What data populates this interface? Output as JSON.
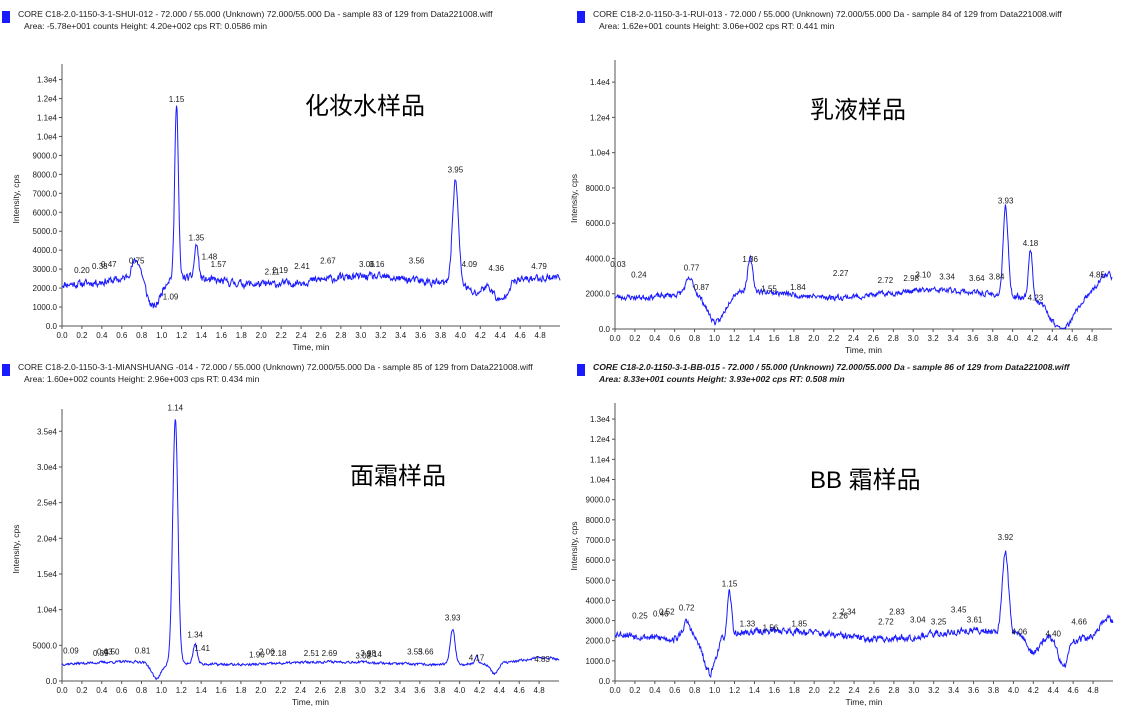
{
  "chart_data": [
    {
      "type": "line",
      "header_line1": "CORE C18-2.0-1150-3-1-SHUI-012 - 72.000 / 55.000 (Unknown) 72.000/55.000 Da - sample 83 of 129 from Data221008.wiff",
      "header_line2": "Area: -5.78e+001 counts  Height: 4.20e+002 cps  RT: 0.0586 min",
      "header_italic": false,
      "sample_label": "化妆水样品",
      "xlabel": "Time, min",
      "ylabel": "Intensity, cps",
      "xlim": [
        0,
        5.0
      ],
      "ylim": [
        0,
        13400
      ],
      "xticks": [
        0.0,
        0.2,
        0.4,
        0.6,
        0.8,
        1.0,
        1.2,
        1.4,
        1.6,
        1.8,
        2.0,
        2.2,
        2.4,
        2.6,
        2.8,
        3.0,
        3.2,
        3.4,
        3.6,
        3.8,
        4.0,
        4.2,
        4.4,
        4.6,
        4.8
      ],
      "xtick_labels": [
        "0.0",
        "0.2",
        "0.4",
        "0.6",
        "0.8",
        "1.0",
        "1.2",
        "1.4",
        "1.6",
        "1.8",
        "2.0",
        "2.2",
        "2.4",
        "2.6",
        "2.8",
        "3.0",
        "3.2",
        "3.4",
        "3.6",
        "3.8",
        "4.0",
        "4.2",
        "4.4",
        "4.6",
        "4.8"
      ],
      "yticks": [
        0,
        1000,
        2000,
        3000,
        4000,
        5000,
        6000,
        7000,
        8000,
        9000,
        10000,
        11000,
        12000,
        13000
      ],
      "ytick_labels": [
        "0.0",
        "1000.0",
        "2000.0",
        "3000.0",
        "4000.0",
        "5000.0",
        "6000.0",
        "7000.0",
        "8000.0",
        "9000.0",
        "1.0e4",
        "1.1e4",
        "1.2e4",
        "1.3e4"
      ],
      "peak_labels": [
        {
          "x": 0.2,
          "y": 2700,
          "label": "0.20"
        },
        {
          "x": 0.38,
          "y": 2900,
          "label": "0.38"
        },
        {
          "x": 0.47,
          "y": 3000,
          "label": "0.47"
        },
        {
          "x": 0.75,
          "y": 3200,
          "label": "0.75"
        },
        {
          "x": 1.09,
          "y": 1300,
          "label": "1.09"
        },
        {
          "x": 1.15,
          "y": 11700,
          "label": "1.15"
        },
        {
          "x": 1.35,
          "y": 4400,
          "label": "1.35"
        },
        {
          "x": 1.48,
          "y": 3400,
          "label": "1.48"
        },
        {
          "x": 1.57,
          "y": 3000,
          "label": "1.57"
        },
        {
          "x": 2.11,
          "y": 2600,
          "label": "2.11"
        },
        {
          "x": 2.19,
          "y": 2700,
          "label": "2.19"
        },
        {
          "x": 2.41,
          "y": 2900,
          "label": "2.41"
        },
        {
          "x": 2.67,
          "y": 3200,
          "label": "2.67"
        },
        {
          "x": 3.06,
          "y": 3000,
          "label": "3.06"
        },
        {
          "x": 3.16,
          "y": 3000,
          "label": "3.16"
        },
        {
          "x": 3.56,
          "y": 3200,
          "label": "3.56"
        },
        {
          "x": 3.95,
          "y": 8000,
          "label": "3.95"
        },
        {
          "x": 4.09,
          "y": 3000,
          "label": "4.09"
        },
        {
          "x": 4.36,
          "y": 2800,
          "label": "4.36"
        },
        {
          "x": 4.79,
          "y": 2900,
          "label": "4.79"
        }
      ],
      "features": [
        {
          "x": 0.75,
          "h": 1000,
          "w": 0.05
        },
        {
          "x": 0.92,
          "h": -1600,
          "w": 0.07
        },
        {
          "x": 1.15,
          "h": 9300,
          "w": 0.018
        },
        {
          "x": 1.35,
          "h": 1800,
          "w": 0.02
        },
        {
          "x": 3.95,
          "h": 5500,
          "w": 0.03
        },
        {
          "x": 4.4,
          "h": -1000,
          "w": 0.06
        },
        {
          "x": 4.15,
          "h": -500,
          "w": 0.06
        }
      ],
      "baseline": 2400,
      "noise": 320,
      "seed": 11
    },
    {
      "type": "line",
      "header_line1": "CORE C18-2.0-1150-3-1-RUI-013 - 72.000 / 55.000 (Unknown) 72.000/55.000 Da - sample 84 of 129 from Data221008.wiff",
      "header_line2": "Area: 1.62e+001 counts  Height: 3.06e+002 cps  RT: 0.441 min",
      "header_italic": false,
      "sample_label": "乳液样品",
      "xlabel": "Time, min",
      "ylabel": "Intensity, cps",
      "xlim": [
        0,
        5.0
      ],
      "ylim": [
        0,
        14800
      ],
      "xticks": [
        0.0,
        0.2,
        0.4,
        0.6,
        0.8,
        1.0,
        1.2,
        1.4,
        1.6,
        1.8,
        2.0,
        2.2,
        2.4,
        2.6,
        2.8,
        3.0,
        3.2,
        3.4,
        3.6,
        3.8,
        4.0,
        4.2,
        4.4,
        4.6,
        4.8
      ],
      "xtick_labels": [
        "0.0",
        "0.2",
        "0.4",
        "0.6",
        "0.8",
        "1.0",
        "1.2",
        "1.4",
        "1.6",
        "1.8",
        "2.0",
        "2.2",
        "2.4",
        "2.6",
        "2.8",
        "3.0",
        "3.2",
        "3.4",
        "3.6",
        "3.8",
        "4.0",
        "4.2",
        "4.4",
        "4.6",
        "4.8"
      ],
      "yticks": [
        0,
        2000,
        4000,
        6000,
        8000,
        10000,
        12000,
        14000
      ],
      "ytick_labels": [
        "0.0",
        "2000.0",
        "4000.0",
        "6000.0",
        "8000.0",
        "1.0e4",
        "1.2e4",
        "1.4e4"
      ],
      "peak_labels": [
        {
          "x": 0.03,
          "y": 3400,
          "label": "0.03"
        },
        {
          "x": 0.24,
          "y": 2800,
          "label": "0.24"
        },
        {
          "x": 0.77,
          "y": 3200,
          "label": "0.77"
        },
        {
          "x": 0.87,
          "y": 2100,
          "label": "0.87"
        },
        {
          "x": 1.36,
          "y": 3700,
          "label": "1.36"
        },
        {
          "x": 1.55,
          "y": 2000,
          "label": "1.55"
        },
        {
          "x": 1.84,
          "y": 2100,
          "label": "1.84"
        },
        {
          "x": 2.27,
          "y": 2900,
          "label": "2.27"
        },
        {
          "x": 2.72,
          "y": 2500,
          "label": "2.72"
        },
        {
          "x": 2.98,
          "y": 2600,
          "label": "2.98"
        },
        {
          "x": 3.1,
          "y": 2800,
          "label": "3.10"
        },
        {
          "x": 3.34,
          "y": 2700,
          "label": "3.34"
        },
        {
          "x": 3.64,
          "y": 2600,
          "label": "3.64"
        },
        {
          "x": 3.84,
          "y": 2700,
          "label": "3.84"
        },
        {
          "x": 3.93,
          "y": 7000,
          "label": "3.93"
        },
        {
          "x": 4.18,
          "y": 4600,
          "label": "4.18"
        },
        {
          "x": 4.23,
          "y": 1500,
          "label": "4.23"
        },
        {
          "x": 4.85,
          "y": 2800,
          "label": "4.85"
        }
      ],
      "features": [
        {
          "x": 0.75,
          "h": 800,
          "w": 0.04
        },
        {
          "x": 1.02,
          "h": -1800,
          "w": 0.09
        },
        {
          "x": 1.36,
          "h": 1800,
          "w": 0.025
        },
        {
          "x": 3.93,
          "h": 5000,
          "w": 0.025
        },
        {
          "x": 4.18,
          "h": 2800,
          "w": 0.02
        },
        {
          "x": 4.5,
          "h": -1900,
          "w": 0.12
        },
        {
          "x": 4.95,
          "h": 1000,
          "w": 0.08
        }
      ],
      "baseline": 2000,
      "noise": 250,
      "seed": 23
    },
    {
      "type": "line",
      "header_line1": "CORE C18-2.0-1150-3-1-MIANSHUANG -014 - 72.000 / 55.000 (Unknown) 72.000/55.000 Da - sample 85 of 129 from Data221008.wiff",
      "header_line2": "Area: 1.60e+002 counts  Height: 2.96e+003 cps  RT: 0.434 min",
      "header_italic": false,
      "sample_label": "面霜样品",
      "xlabel": "Time, min",
      "ylabel": "Intensity, cps",
      "xlim": [
        0,
        5.0
      ],
      "ylim": [
        0,
        37000
      ],
      "xticks": [
        0.0,
        0.2,
        0.4,
        0.6,
        0.8,
        1.0,
        1.2,
        1.4,
        1.6,
        1.8,
        2.0,
        2.2,
        2.4,
        2.6,
        2.8,
        3.0,
        3.2,
        3.4,
        3.6,
        3.8,
        4.0,
        4.2,
        4.4,
        4.6,
        4.8
      ],
      "xtick_labels": [
        "0.0",
        "0.2",
        "0.4",
        "0.6",
        "0.8",
        "1.0",
        "1.2",
        "1.4",
        "1.6",
        "1.8",
        "2.0",
        "2.2",
        "2.4",
        "2.6",
        "2.8",
        "3.0",
        "3.2",
        "3.4",
        "3.6",
        "3.8",
        "4.0",
        "4.2",
        "4.4",
        "4.6",
        "4.8"
      ],
      "yticks": [
        0,
        5000,
        10000,
        15000,
        20000,
        25000,
        30000,
        35000
      ],
      "ytick_labels": [
        "0.0",
        "5000.0",
        "1.0e4",
        "1.5e4",
        "2.0e4",
        "2.5e4",
        "3.0e4",
        "3.5e4"
      ],
      "peak_labels": [
        {
          "x": 0.09,
          "y": 3600,
          "label": "0.09"
        },
        {
          "x": 0.39,
          "y": 3200,
          "label": "0.39"
        },
        {
          "x": 0.43,
          "y": 3400,
          "label": "0.43"
        },
        {
          "x": 0.5,
          "y": 3400,
          "label": "0.50"
        },
        {
          "x": 0.81,
          "y": 3600,
          "label": "0.81"
        },
        {
          "x": 1.14,
          "y": 37600,
          "label": "1.14"
        },
        {
          "x": 1.34,
          "y": 5800,
          "label": "1.34"
        },
        {
          "x": 1.41,
          "y": 3900,
          "label": "1.41"
        },
        {
          "x": 1.96,
          "y": 3000,
          "label": "1.96"
        },
        {
          "x": 2.06,
          "y": 3400,
          "label": "2.06"
        },
        {
          "x": 2.18,
          "y": 3200,
          "label": "2.18"
        },
        {
          "x": 2.51,
          "y": 3200,
          "label": "2.51"
        },
        {
          "x": 2.69,
          "y": 3200,
          "label": "2.69"
        },
        {
          "x": 3.03,
          "y": 2900,
          "label": "3.03"
        },
        {
          "x": 3.08,
          "y": 3200,
          "label": "3.08"
        },
        {
          "x": 3.14,
          "y": 3100,
          "label": "3.14"
        },
        {
          "x": 3.55,
          "y": 3400,
          "label": "3.55"
        },
        {
          "x": 3.66,
          "y": 3400,
          "label": "3.66"
        },
        {
          "x": 3.93,
          "y": 8200,
          "label": "3.93"
        },
        {
          "x": 4.17,
          "y": 2600,
          "label": "4.17"
        },
        {
          "x": 4.83,
          "y": 2400,
          "label": "4.83"
        }
      ],
      "features": [
        {
          "x": 0.95,
          "h": -2300,
          "w": 0.05
        },
        {
          "x": 1.14,
          "h": 34200,
          "w": 0.026
        },
        {
          "x": 1.34,
          "h": 2800,
          "w": 0.02
        },
        {
          "x": 3.93,
          "h": 4800,
          "w": 0.025
        },
        {
          "x": 4.17,
          "h": 1100,
          "w": 0.015
        },
        {
          "x": 4.35,
          "h": -1500,
          "w": 0.04
        },
        {
          "x": 4.85,
          "h": 600,
          "w": 0.15
        }
      ],
      "baseline": 2500,
      "noise": 280,
      "seed": 37
    },
    {
      "type": "line",
      "header_line1": "CORE C18-2.0-1150-3-1-BB-015 - 72.000 / 55.000 (Unknown) 72.000/55.000 Da - sample 86 of 129 from Data221008.wiff",
      "header_line2": "Area: 8.33e+001 counts  Height: 3.93e+002 cps  RT: 0.508 min",
      "header_italic": true,
      "sample_label": "BB 霜样品",
      "xlabel": "Time, min",
      "ylabel": "Intensity, cps",
      "xlim": [
        0,
        5.0
      ],
      "ylim": [
        0,
        13400
      ],
      "xticks": [
        0.0,
        0.2,
        0.4,
        0.6,
        0.8,
        1.0,
        1.2,
        1.4,
        1.6,
        1.8,
        2.0,
        2.2,
        2.4,
        2.6,
        2.8,
        3.0,
        3.2,
        3.4,
        3.6,
        3.8,
        4.0,
        4.2,
        4.4,
        4.6,
        4.8
      ],
      "xtick_labels": [
        "0.0",
        "0.2",
        "0.4",
        "0.6",
        "0.8",
        "1.0",
        "1.2",
        "1.4",
        "1.6",
        "1.8",
        "2.0",
        "2.2",
        "2.4",
        "2.6",
        "2.8",
        "3.0",
        "3.2",
        "3.4",
        "3.6",
        "3.8",
        "4.0",
        "4.2",
        "4.4",
        "4.6",
        "4.8"
      ],
      "yticks": [
        0,
        1000,
        2000,
        3000,
        4000,
        5000,
        6000,
        7000,
        8000,
        9000,
        10000,
        11000,
        12000,
        13000
      ],
      "ytick_labels": [
        "0.0",
        "1000.0",
        "2000.0",
        "3000.0",
        "4000.0",
        "5000.0",
        "6000.0",
        "7000.0",
        "8000.0",
        "9000.0",
        "1.0e4",
        "1.1e4",
        "1.2e4",
        "1.3e4"
      ],
      "peak_labels": [
        {
          "x": 0.25,
          "y": 3000,
          "label": "0.25"
        },
        {
          "x": 0.46,
          "y": 3100,
          "label": "0.46"
        },
        {
          "x": 0.52,
          "y": 3200,
          "label": "0.52"
        },
        {
          "x": 0.72,
          "y": 3400,
          "label": "0.72"
        },
        {
          "x": 1.15,
          "y": 4600,
          "label": "1.15"
        },
        {
          "x": 1.33,
          "y": 2600,
          "label": "1.33"
        },
        {
          "x": 1.56,
          "y": 2400,
          "label": "1.56"
        },
        {
          "x": 1.85,
          "y": 2600,
          "label": "1.85"
        },
        {
          "x": 2.26,
          "y": 3000,
          "label": "2.26"
        },
        {
          "x": 2.34,
          "y": 3200,
          "label": "2.34"
        },
        {
          "x": 2.72,
          "y": 2700,
          "label": "2.72"
        },
        {
          "x": 2.83,
          "y": 3200,
          "label": "2.83"
        },
        {
          "x": 3.04,
          "y": 2800,
          "label": "3.04"
        },
        {
          "x": 3.25,
          "y": 2700,
          "label": "3.25"
        },
        {
          "x": 3.45,
          "y": 3300,
          "label": "3.45"
        },
        {
          "x": 3.61,
          "y": 2800,
          "label": "3.61"
        },
        {
          "x": 3.92,
          "y": 6900,
          "label": "3.92"
        },
        {
          "x": 4.06,
          "y": 2200,
          "label": "4.06"
        },
        {
          "x": 4.4,
          "y": 2100,
          "label": "4.40"
        },
        {
          "x": 4.66,
          "y": 2700,
          "label": "4.66"
        }
      ],
      "features": [
        {
          "x": 0.72,
          "h": 800,
          "w": 0.04
        },
        {
          "x": 0.95,
          "h": -1800,
          "w": 0.06
        },
        {
          "x": 1.15,
          "h": 2100,
          "w": 0.02
        },
        {
          "x": 3.92,
          "h": 4000,
          "w": 0.03
        },
        {
          "x": 4.2,
          "h": -900,
          "w": 0.06
        },
        {
          "x": 4.5,
          "h": -1400,
          "w": 0.05
        },
        {
          "x": 4.95,
          "h": 900,
          "w": 0.08
        }
      ],
      "baseline": 2300,
      "noise": 280,
      "seed": 53
    }
  ]
}
